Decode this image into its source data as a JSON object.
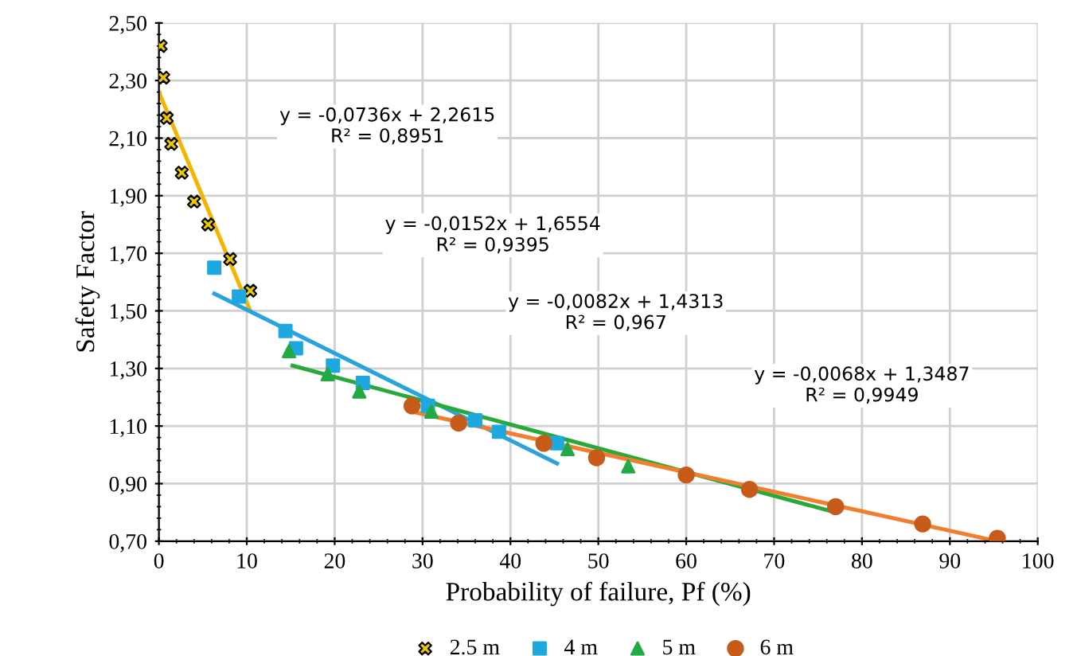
{
  "chart_data": {
    "type": "scatter",
    "xlabel": "Probability of failure, Pf (%)",
    "ylabel": "Safety Factor",
    "xlim": [
      0,
      100
    ],
    "xticks": [
      0,
      10,
      20,
      30,
      40,
      50,
      60,
      70,
      80,
      90,
      100
    ],
    "ylim": [
      0.7,
      2.5
    ],
    "yticks": [
      {
        "value": 0.7,
        "label": "0,70"
      },
      {
        "value": 0.9,
        "label": "0,90"
      },
      {
        "value": 1.1,
        "label": "1,10"
      },
      {
        "value": 1.3,
        "label": "1,30"
      },
      {
        "value": 1.5,
        "label": "1,50"
      },
      {
        "value": 1.7,
        "label": "1,70"
      },
      {
        "value": 1.9,
        "label": "1,90"
      },
      {
        "value": 2.1,
        "label": "2,10"
      },
      {
        "value": 2.3,
        "label": "2,30"
      },
      {
        "value": 2.5,
        "label": "2,50"
      }
    ],
    "grid": true,
    "legend": "bottom",
    "series": [
      {
        "type": "line",
        "color": "#f5b400",
        "marker": "none",
        "x": [
          0,
          10.4
        ],
        "values": [
          2.26,
          1.5
        ]
      },
      {
        "type": "line",
        "color": "#2aa3dc",
        "marker": "none",
        "x": [
          6.3,
          45.3
        ],
        "values": [
          1.56,
          0.97
        ]
      },
      {
        "type": "line",
        "color": "#2aa83a",
        "marker": "none",
        "x": [
          15.2,
          77
        ],
        "values": [
          1.31,
          0.8
        ]
      },
      {
        "type": "line",
        "color": "#f08030",
        "marker": "none",
        "x": [
          28.8,
          95.4
        ],
        "values": [
          1.15,
          0.7
        ]
      },
      {
        "name": "2.5 m",
        "color": "#e8c800",
        "marker": "cross",
        "x": [
          0.2,
          0.5,
          0.9,
          1.4,
          2.6,
          4.0,
          5.6,
          8.1,
          10.4
        ],
        "values": [
          2.42,
          2.31,
          2.17,
          2.08,
          1.98,
          1.88,
          1.8,
          1.68,
          1.57
        ]
      },
      {
        "name": "4 m",
        "color": "#1fa8e0",
        "marker": "square",
        "x": [
          6.3,
          9.1,
          14.4,
          15.6,
          19.8,
          23.2,
          30.6,
          36.0,
          38.7,
          45.3
        ],
        "values": [
          1.65,
          1.55,
          1.43,
          1.37,
          1.31,
          1.25,
          1.17,
          1.12,
          1.08,
          1.04
        ]
      },
      {
        "name": "5 m",
        "color": "#22aa44",
        "marker": "triangle",
        "x": [
          14.8,
          19.2,
          22.8,
          31.0,
          46.5,
          53.4
        ],
        "values": [
          1.36,
          1.28,
          1.22,
          1.15,
          1.02,
          0.96
        ]
      },
      {
        "name": "6 m",
        "color": "#c85a1a",
        "marker": "circle",
        "x": [
          28.8,
          34.1,
          43.8,
          49.8,
          60.0,
          67.2,
          77.0,
          86.9,
          95.4
        ],
        "values": [
          1.17,
          1.11,
          1.04,
          0.99,
          0.93,
          0.88,
          0.82,
          0.76,
          0.71
        ]
      }
    ],
    "annotations": [
      "y = -0,0736x + 2,2615\nR² = 0,8951",
      "y = -0,0152x + 1,6554\nR² = 0,9395",
      "y = -0,0082x + 1,4313\nR² = 0,967",
      "y = -0,0068x + 1,3487\nR² = 0,9949"
    ]
  }
}
